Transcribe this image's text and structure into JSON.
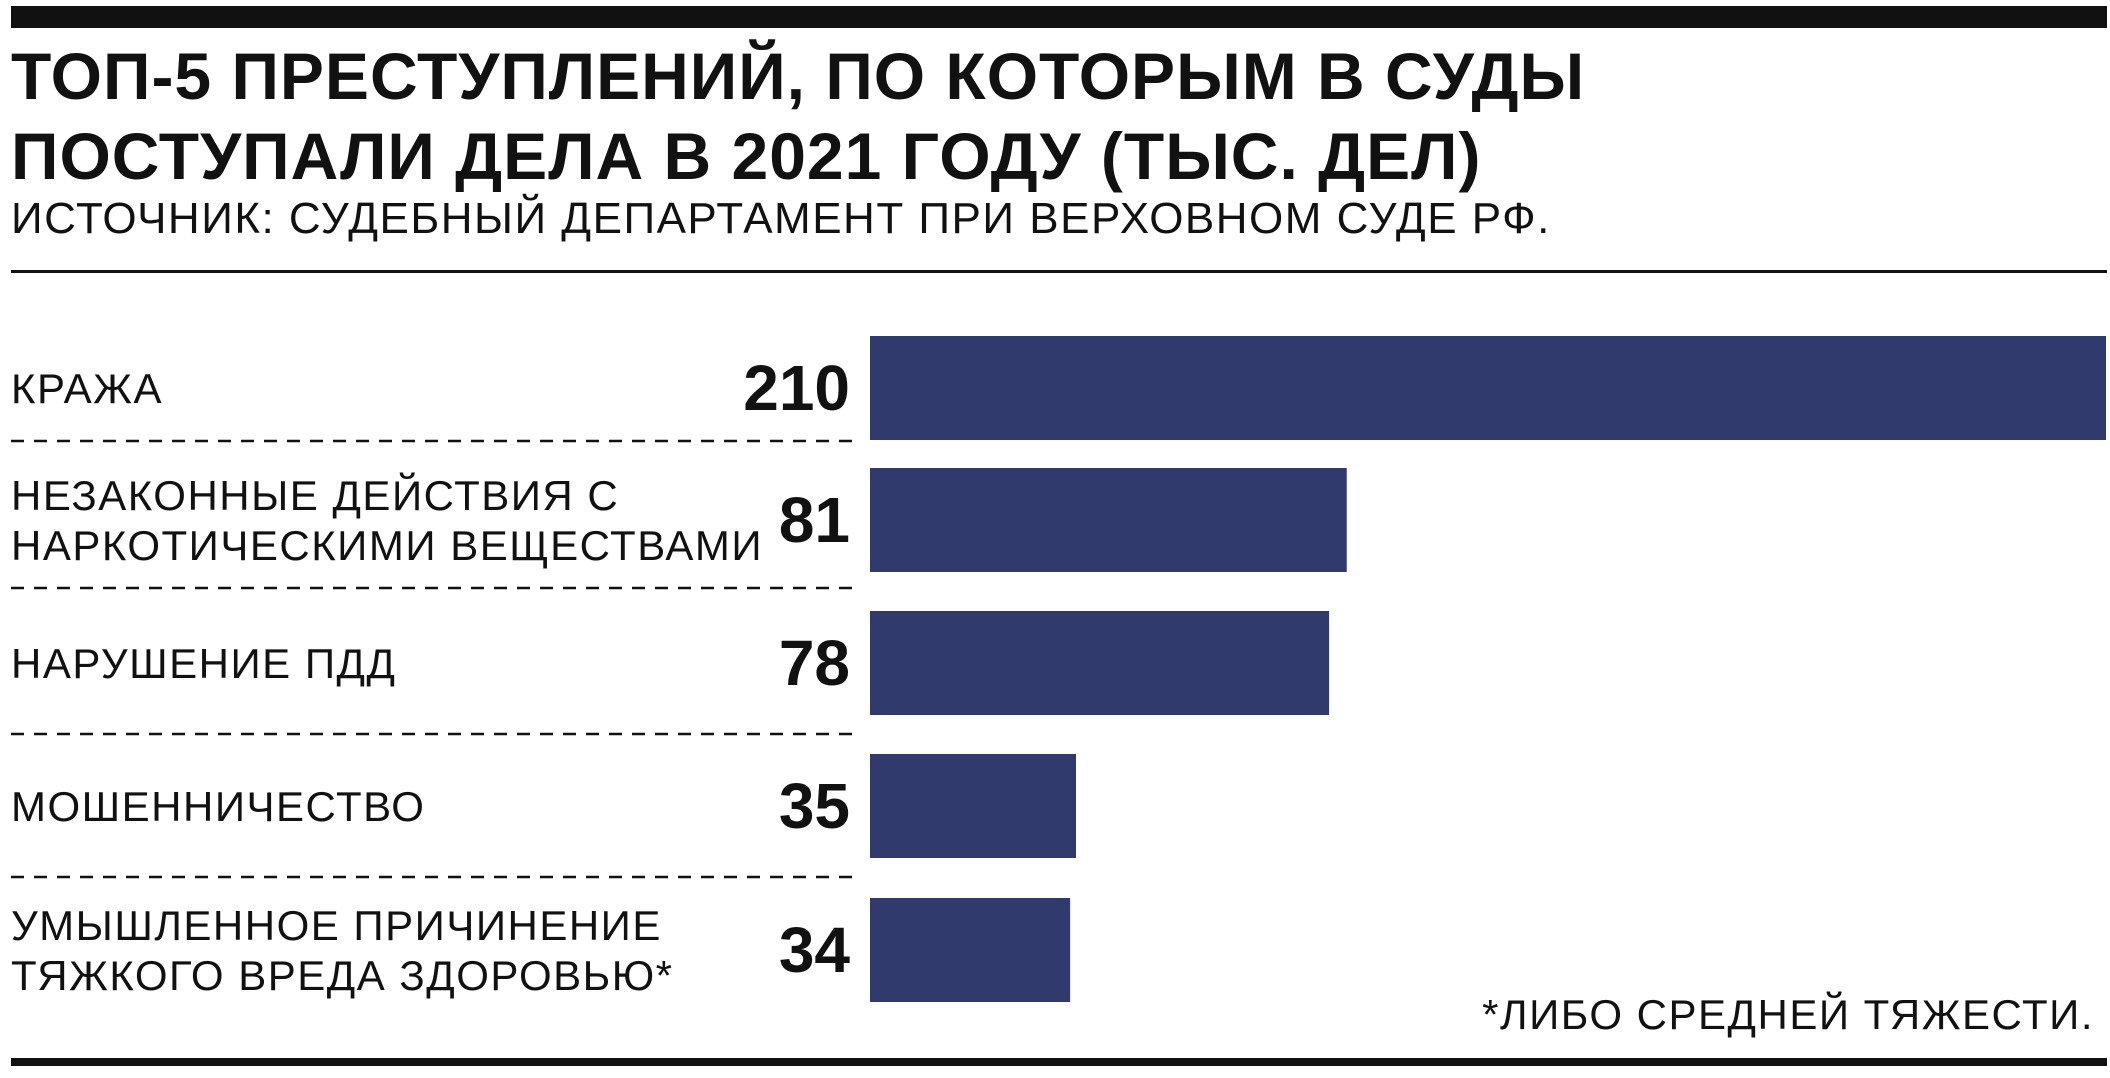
{
  "title_lines": [
    "ТОП-5 ПРЕСТУПЛЕНИЙ, ПО КОТОРЫМ В СУДЫ",
    "ПОСТУПАЛИ ДЕЛА В 2021 ГОДУ (ТЫС. ДЕЛ)"
  ],
  "source": "ИСТОЧНИК: СУДЕБНЫЙ ДЕПАРТАМЕНТ ПРИ ВЕРХОВНОМ СУДЕ РФ.",
  "footnote": "*ЛИБО СРЕДНЕЙ ТЯЖЕСТИ.",
  "colors": {
    "bar": "#313A6C",
    "text": "#111111",
    "divider": "#111111"
  },
  "chart_data": {
    "type": "bar",
    "orientation": "horizontal",
    "title": "ТОП-5 ПРЕСТУПЛЕНИЙ, ПО КОТОРЫМ В СУДЫ ПОСТУПАЛИ ДЕЛА В 2021 ГОДУ (ТЫС. ДЕЛ)",
    "categories": [
      [
        "КРАЖА"
      ],
      [
        "НЕЗАКОННЫЕ ДЕЙСТВИЯ С",
        "НАРКОТИЧЕСКИМИ ВЕЩЕСТВАМИ"
      ],
      [
        "НАРУШЕНИЕ ПДД"
      ],
      [
        "МОШЕННИЧЕСТВО"
      ],
      [
        "УМЫШЛЕННОЕ ПРИЧИНЕНИЕ",
        "ТЯЖКОГО ВРЕДА ЗДОРОВЬЮ*"
      ]
    ],
    "values": [
      210,
      81,
      78,
      35,
      34
    ],
    "xlim": [
      0,
      210
    ],
    "grid": false,
    "legend": "none",
    "data_labels": true
  }
}
